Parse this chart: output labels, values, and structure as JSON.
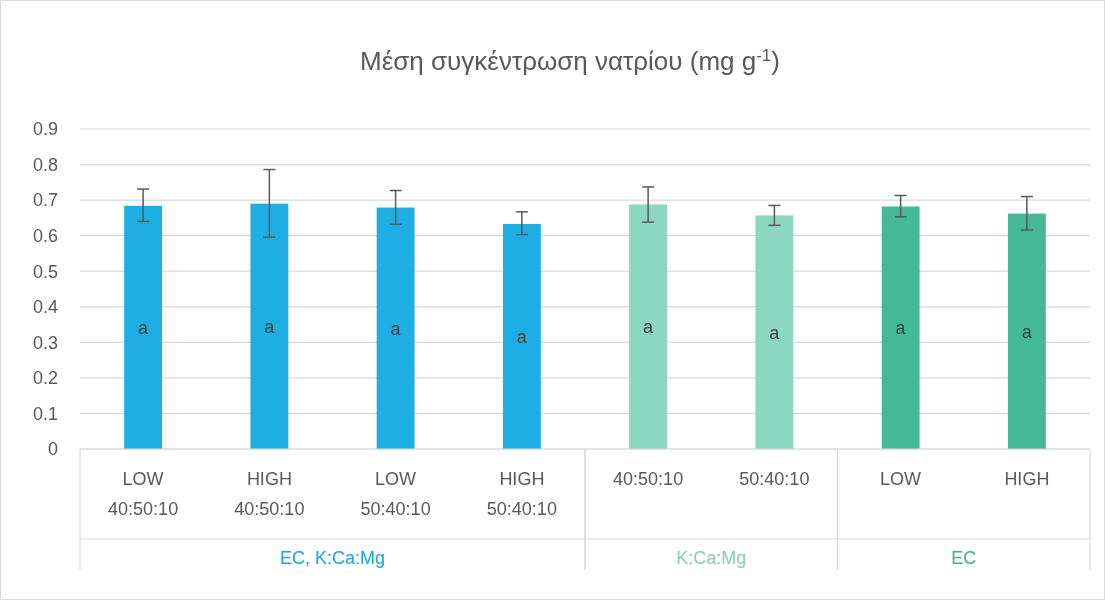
{
  "chart_data": {
    "type": "bar",
    "title": "Μέση συγκέντρωση νατρίου (mg g$^{-1}$)",
    "categories": [
      "LOW\n40:50:10",
      "HIGH\n40:50:10",
      "LOW\n50:40:10",
      "HIGH\n50:40:10",
      "40:50:10",
      "50:40:10",
      "LOW",
      "HIGH"
    ],
    "series": [
      {
        "name": "EC, K:Ca:Mg",
        "color": "#1eaee4",
        "values": [
          0.684,
          0.69,
          0.679,
          0.633,
          null,
          null,
          null,
          null
        ],
        "errors": [
          [
            0.64,
            0.731
          ],
          [
            0.596,
            0.786
          ],
          [
            0.632,
            0.727
          ],
          [
            0.603,
            0.667
          ],
          null,
          null,
          null,
          null
        ]
      },
      {
        "name": "K:Ca:Mg",
        "color": "#8dd7c0",
        "values": [
          null,
          null,
          null,
          null,
          0.688,
          0.657,
          null,
          null
        ],
        "errors": [
          null,
          null,
          null,
          null,
          [
            0.638,
            0.737
          ],
          [
            0.629,
            0.685
          ],
          null,
          null
        ]
      },
      {
        "name": "EC",
        "color": "#43b995",
        "values": [
          null,
          null,
          null,
          null,
          null,
          null,
          0.682,
          0.662
        ],
        "errors": [
          null,
          null,
          null,
          null,
          null,
          null,
          [
            0.653,
            0.713
          ],
          [
            0.616,
            0.71
          ]
        ]
      }
    ],
    "annotations": [
      "a",
      "a",
      "a",
      "a",
      "a",
      "a",
      "a",
      "a"
    ],
    "ylim": [
      0,
      0.9
    ],
    "yticks": [
      0,
      0.1,
      0.2,
      0.3,
      0.4,
      0.5,
      0.6,
      0.7,
      0.8,
      0.9
    ],
    "grid": "y"
  }
}
